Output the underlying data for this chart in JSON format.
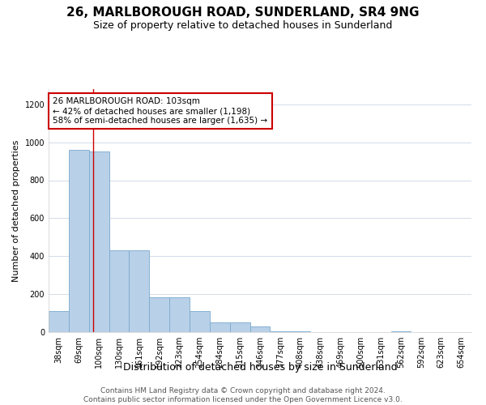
{
  "title": "26, MARLBOROUGH ROAD, SUNDERLAND, SR4 9NG",
  "subtitle": "Size of property relative to detached houses in Sunderland",
  "xlabel": "Distribution of detached houses by size in Sunderland",
  "ylabel": "Number of detached properties",
  "footer_line1": "Contains HM Land Registry data © Crown copyright and database right 2024.",
  "footer_line2": "Contains public sector information licensed under the Open Government Licence v3.0.",
  "categories": [
    "38sqm",
    "69sqm",
    "100sqm",
    "130sqm",
    "161sqm",
    "192sqm",
    "223sqm",
    "254sqm",
    "284sqm",
    "315sqm",
    "346sqm",
    "377sqm",
    "408sqm",
    "438sqm",
    "469sqm",
    "500sqm",
    "531sqm",
    "562sqm",
    "592sqm",
    "623sqm",
    "654sqm"
  ],
  "bar_heights": [
    110,
    960,
    950,
    430,
    430,
    185,
    185,
    110,
    50,
    50,
    30,
    5,
    5,
    0,
    0,
    0,
    0,
    5,
    0,
    0,
    0
  ],
  "bar_color": "#b8d0e8",
  "bar_edge_color": "#7aaace",
  "bar_edge_width": 0.6,
  "ylim": [
    0,
    1280
  ],
  "yticks": [
    0,
    200,
    400,
    600,
    800,
    1000,
    1200
  ],
  "annotation_text": "26 MARLBOROUGH ROAD: 103sqm\n← 42% of detached houses are smaller (1,198)\n58% of semi-detached houses are larger (1,635) →",
  "annotation_box_color": "#ffffff",
  "annotation_border_color": "#cc0000",
  "vline_color": "#cc0000",
  "vline_lw": 1.0,
  "grid_color": "#d4dce8",
  "title_fontsize": 11,
  "subtitle_fontsize": 9,
  "xlabel_fontsize": 9,
  "ylabel_fontsize": 8,
  "tick_fontsize": 7,
  "annotation_fontsize": 7.5,
  "footer_fontsize": 6.5
}
